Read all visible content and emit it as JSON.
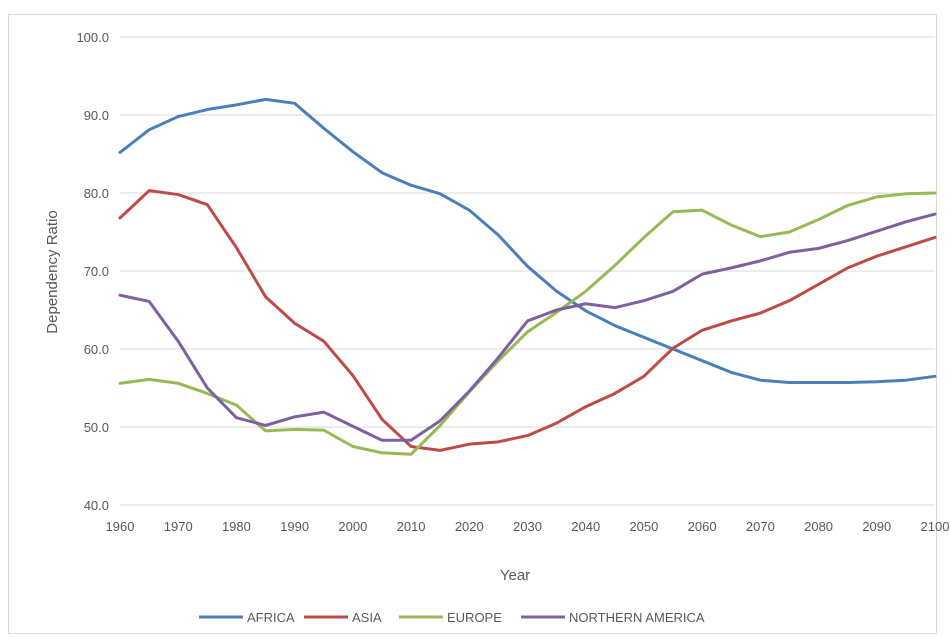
{
  "chart_data": {
    "type": "line",
    "xlabel": "Year",
    "ylabel": "Dependency Ratio",
    "ylim": [
      40,
      100
    ],
    "yticks": [
      "40.0",
      "50.0",
      "60.0",
      "70.0",
      "80.0",
      "90.0",
      "100.0"
    ],
    "xlim": [
      1960,
      2100
    ],
    "xticks": [
      "1960",
      "1970",
      "1980",
      "1990",
      "2000",
      "2010",
      "2020",
      "2030",
      "2040",
      "2050",
      "2060",
      "2070",
      "2080",
      "2090",
      "2100"
    ],
    "grid": "horizontal",
    "legend_position": "bottom",
    "x": [
      1960,
      1965,
      1970,
      1975,
      1980,
      1985,
      1990,
      1995,
      2000,
      2005,
      2010,
      2015,
      2020,
      2025,
      2030,
      2035,
      2040,
      2045,
      2050,
      2055,
      2060,
      2065,
      2070,
      2075,
      2080,
      2085,
      2090,
      2095,
      2100
    ],
    "series": [
      {
        "name": "AFRICA",
        "color": "#4a7fbb",
        "values": [
          85.2,
          88.1,
          89.8,
          90.7,
          91.3,
          92.0,
          91.5,
          88.3,
          85.3,
          82.6,
          81.0,
          79.9,
          77.8,
          74.6,
          70.6,
          67.4,
          64.9,
          63.0,
          61.5,
          60.0,
          58.5,
          57.0,
          56.0,
          55.7,
          55.7,
          55.7,
          55.8,
          56.0,
          56.5
        ]
      },
      {
        "name": "ASIA",
        "color": "#be4b48",
        "values": [
          76.8,
          80.3,
          79.8,
          78.5,
          73.0,
          66.7,
          63.3,
          61.0,
          56.6,
          51.0,
          47.5,
          47.0,
          47.8,
          48.1,
          48.9,
          50.5,
          52.6,
          54.3,
          56.5,
          60.1,
          62.4,
          63.6,
          64.6,
          66.2,
          68.3,
          70.4,
          71.9,
          73.1,
          74.3
        ]
      },
      {
        "name": "EUROPE",
        "color": "#98b954",
        "values": [
          55.6,
          56.1,
          55.6,
          54.3,
          52.8,
          49.5,
          49.7,
          49.6,
          47.5,
          46.7,
          46.5,
          50.2,
          54.5,
          58.5,
          62.2,
          64.7,
          67.4,
          70.7,
          74.3,
          77.6,
          77.8,
          75.9,
          74.4,
          75.0,
          76.6,
          78.4,
          79.5,
          79.9,
          80.0
        ]
      },
      {
        "name": "NORTHERN AMERICA",
        "color": "#7d60a0",
        "values": [
          66.9,
          66.1,
          61.0,
          55.0,
          51.2,
          50.2,
          51.3,
          51.9,
          50.1,
          48.3,
          48.3,
          50.8,
          54.6,
          58.9,
          63.6,
          65.0,
          65.8,
          65.3,
          66.2,
          67.4,
          69.6,
          70.4,
          71.3,
          72.4,
          72.9,
          73.9,
          75.1,
          76.3,
          77.3
        ]
      }
    ]
  }
}
